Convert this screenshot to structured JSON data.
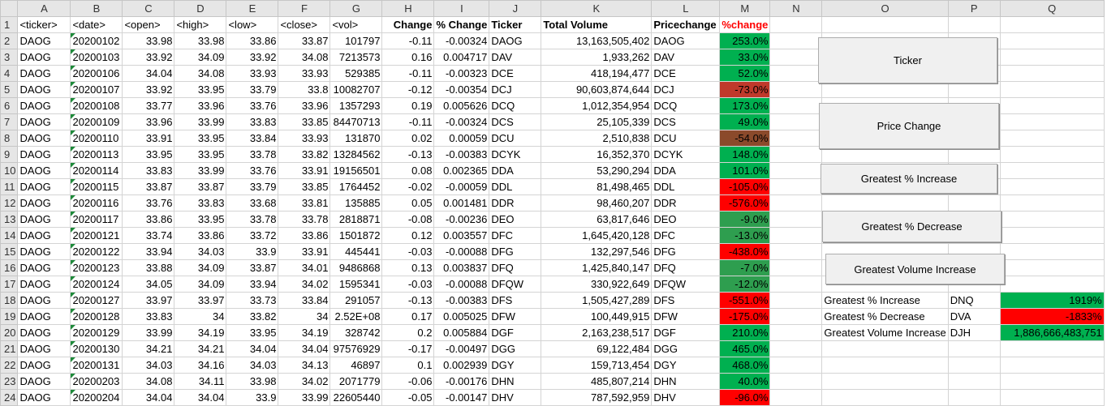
{
  "columns": [
    "A",
    "B",
    "C",
    "D",
    "E",
    "F",
    "G",
    "H",
    "I",
    "J",
    "K",
    "L",
    "M",
    "N",
    "O",
    "P",
    "Q"
  ],
  "colors": {
    "green": "#00b050",
    "red": "#ff0000",
    "dark_red": "#c0392b",
    "brown": "#8b4a2b",
    "dark_green": "#2e9e4f"
  },
  "headers": {
    "A": "<ticker>",
    "B": "<date>",
    "C": "<open>",
    "D": "<high>",
    "E": "<low>",
    "F": "<close>",
    "G": "<vol>",
    "H": "Change",
    "I": "% Change",
    "J": "Ticker",
    "K": "Total Volume",
    "L": "Pricechange",
    "M": "%change"
  },
  "rows": [
    {
      "n": "2",
      "a": "DAOG",
      "b": "20200102",
      "c": "33.98",
      "d": "33.98",
      "e": "33.86",
      "f": "33.87",
      "g": "101797",
      "h": "-0.11",
      "i": "-0.00324",
      "j": "DAOG",
      "k": "13,163,505,402",
      "l": "DAOG",
      "m": "253.0%",
      "mc": "green"
    },
    {
      "n": "3",
      "a": "DAOG",
      "b": "20200103",
      "c": "33.92",
      "d": "34.09",
      "e": "33.92",
      "f": "34.08",
      "g": "7213573",
      "h": "0.16",
      "i": "0.004717",
      "j": "DAV",
      "k": "1,933,262",
      "l": "DAV",
      "m": "33.0%",
      "mc": "green"
    },
    {
      "n": "4",
      "a": "DAOG",
      "b": "20200106",
      "c": "34.04",
      "d": "34.08",
      "e": "33.93",
      "f": "33.93",
      "g": "529385",
      "h": "-0.11",
      "i": "-0.00323",
      "j": "DCE",
      "k": "418,194,477",
      "l": "DCE",
      "m": "52.0%",
      "mc": "green"
    },
    {
      "n": "5",
      "a": "DAOG",
      "b": "20200107",
      "c": "33.92",
      "d": "33.95",
      "e": "33.79",
      "f": "33.8",
      "g": "10082707",
      "h": "-0.12",
      "i": "-0.00354",
      "j": "DCJ",
      "k": "90,603,874,644",
      "l": "DCJ",
      "m": "-73.0%",
      "mc": "dark_red"
    },
    {
      "n": "6",
      "a": "DAOG",
      "b": "20200108",
      "c": "33.77",
      "d": "33.96",
      "e": "33.76",
      "f": "33.96",
      "g": "1357293",
      "h": "0.19",
      "i": "0.005626",
      "j": "DCQ",
      "k": "1,012,354,954",
      "l": "DCQ",
      "m": "173.0%",
      "mc": "green"
    },
    {
      "n": "7",
      "a": "DAOG",
      "b": "20200109",
      "c": "33.96",
      "d": "33.99",
      "e": "33.83",
      "f": "33.85",
      "g": "84470713",
      "h": "-0.11",
      "i": "-0.00324",
      "j": "DCS",
      "k": "25,105,339",
      "l": "DCS",
      "m": "49.0%",
      "mc": "green"
    },
    {
      "n": "8",
      "a": "DAOG",
      "b": "20200110",
      "c": "33.91",
      "d": "33.95",
      "e": "33.84",
      "f": "33.93",
      "g": "131870",
      "h": "0.02",
      "i": "0.00059",
      "j": "DCU",
      "k": "2,510,838",
      "l": "DCU",
      "m": "-54.0%",
      "mc": "brown"
    },
    {
      "n": "9",
      "a": "DAOG",
      "b": "20200113",
      "c": "33.95",
      "d": "33.95",
      "e": "33.78",
      "f": "33.82",
      "g": "13284562",
      "h": "-0.13",
      "i": "-0.00383",
      "j": "DCYK",
      "k": "16,352,370",
      "l": "DCYK",
      "m": "148.0%",
      "mc": "green"
    },
    {
      "n": "10",
      "a": "DAOG",
      "b": "20200114",
      "c": "33.83",
      "d": "33.99",
      "e": "33.76",
      "f": "33.91",
      "g": "19156501",
      "h": "0.08",
      "i": "0.002365",
      "j": "DDA",
      "k": "53,290,294",
      "l": "DDA",
      "m": "101.0%",
      "mc": "green"
    },
    {
      "n": "11",
      "a": "DAOG",
      "b": "20200115",
      "c": "33.87",
      "d": "33.87",
      "e": "33.79",
      "f": "33.85",
      "g": "1764452",
      "h": "-0.02",
      "i": "-0.00059",
      "j": "DDL",
      "k": "81,498,465",
      "l": "DDL",
      "m": "-105.0%",
      "mc": "red"
    },
    {
      "n": "12",
      "a": "DAOG",
      "b": "20200116",
      "c": "33.76",
      "d": "33.83",
      "e": "33.68",
      "f": "33.81",
      "g": "135885",
      "h": "0.05",
      "i": "0.001481",
      "j": "DDR",
      "k": "98,460,207",
      "l": "DDR",
      "m": "-576.0%",
      "mc": "red"
    },
    {
      "n": "13",
      "a": "DAOG",
      "b": "20200117",
      "c": "33.86",
      "d": "33.95",
      "e": "33.78",
      "f": "33.78",
      "g": "2818871",
      "h": "-0.08",
      "i": "-0.00236",
      "j": "DEO",
      "k": "63,817,646",
      "l": "DEO",
      "m": "-9.0%",
      "mc": "dark_green"
    },
    {
      "n": "14",
      "a": "DAOG",
      "b": "20200121",
      "c": "33.74",
      "d": "33.86",
      "e": "33.72",
      "f": "33.86",
      "g": "1501872",
      "h": "0.12",
      "i": "0.003557",
      "j": "DFC",
      "k": "1,645,420,128",
      "l": "DFC",
      "m": "-13.0%",
      "mc": "dark_green"
    },
    {
      "n": "15",
      "a": "DAOG",
      "b": "20200122",
      "c": "33.94",
      "d": "34.03",
      "e": "33.9",
      "f": "33.91",
      "g": "445441",
      "h": "-0.03",
      "i": "-0.00088",
      "j": "DFG",
      "k": "132,297,546",
      "l": "DFG",
      "m": "-438.0%",
      "mc": "red"
    },
    {
      "n": "16",
      "a": "DAOG",
      "b": "20200123",
      "c": "33.88",
      "d": "34.09",
      "e": "33.87",
      "f": "34.01",
      "g": "9486868",
      "h": "0.13",
      "i": "0.003837",
      "j": "DFQ",
      "k": "1,425,840,147",
      "l": "DFQ",
      "m": "-7.0%",
      "mc": "dark_green"
    },
    {
      "n": "17",
      "a": "DAOG",
      "b": "20200124",
      "c": "34.05",
      "d": "34.09",
      "e": "33.94",
      "f": "34.02",
      "g": "1595341",
      "h": "-0.03",
      "i": "-0.00088",
      "j": "DFQW",
      "k": "330,922,649",
      "l": "DFQW",
      "m": "-12.0%",
      "mc": "dark_green"
    },
    {
      "n": "18",
      "a": "DAOG",
      "b": "20200127",
      "c": "33.97",
      "d": "33.97",
      "e": "33.73",
      "f": "33.84",
      "g": "291057",
      "h": "-0.13",
      "i": "-0.00383",
      "j": "DFS",
      "k": "1,505,427,289",
      "l": "DFS",
      "m": "-551.0%",
      "mc": "red"
    },
    {
      "n": "19",
      "a": "DAOG",
      "b": "20200128",
      "c": "33.83",
      "d": "34",
      "e": "33.82",
      "f": "34",
      "g": "2.52E+08",
      "h": "0.17",
      "i": "0.005025",
      "j": "DFW",
      "k": "100,449,915",
      "l": "DFW",
      "m": "-175.0%",
      "mc": "red"
    },
    {
      "n": "20",
      "a": "DAOG",
      "b": "20200129",
      "c": "33.99",
      "d": "34.19",
      "e": "33.95",
      "f": "34.19",
      "g": "328742",
      "h": "0.2",
      "i": "0.005884",
      "j": "DGF",
      "k": "2,163,238,517",
      "l": "DGF",
      "m": "210.0%",
      "mc": "green"
    },
    {
      "n": "21",
      "a": "DAOG",
      "b": "20200130",
      "c": "34.21",
      "d": "34.21",
      "e": "34.04",
      "f": "34.04",
      "g": "97576929",
      "h": "-0.17",
      "i": "-0.00497",
      "j": "DGG",
      "k": "69,122,484",
      "l": "DGG",
      "m": "465.0%",
      "mc": "green"
    },
    {
      "n": "22",
      "a": "DAOG",
      "b": "20200131",
      "c": "34.03",
      "d": "34.16",
      "e": "34.03",
      "f": "34.13",
      "g": "46897",
      "h": "0.1",
      "i": "0.002939",
      "j": "DGY",
      "k": "159,713,454",
      "l": "DGY",
      "m": "468.0%",
      "mc": "green"
    },
    {
      "n": "23",
      "a": "DAOG",
      "b": "20200203",
      "c": "34.08",
      "d": "34.11",
      "e": "33.98",
      "f": "34.02",
      "g": "2071779",
      "h": "-0.06",
      "i": "-0.00176",
      "j": "DHN",
      "k": "485,807,214",
      "l": "DHN",
      "m": "40.0%",
      "mc": "green"
    },
    {
      "n": "24",
      "a": "DAOG",
      "b": "20200204",
      "c": "34.04",
      "d": "34.04",
      "e": "33.9",
      "f": "33.99",
      "g": "22605440",
      "h": "-0.05",
      "i": "-0.00147",
      "j": "DHV",
      "k": "787,592,959",
      "l": "DHV",
      "m": "-96.0%",
      "mc": "red"
    }
  ],
  "buttons": {
    "ticker": "Ticker",
    "price_change": "Price Change",
    "greatest_increase": "Greatest % Increase",
    "greatest_decrease": "Greatest % Decrease",
    "greatest_volume": "Greatest Volume Increase"
  },
  "summary": [
    {
      "label": "Greatest % Increase",
      "ticker": "DNQ",
      "value": "1919%",
      "color": "green"
    },
    {
      "label": "Greatest % Decrease",
      "ticker": "DVA",
      "value": "-1833%",
      "color": "red"
    },
    {
      "label": "Greatest Volume Increase",
      "ticker": "DJH",
      "value": "1,886,666,483,751",
      "color": "green"
    }
  ]
}
